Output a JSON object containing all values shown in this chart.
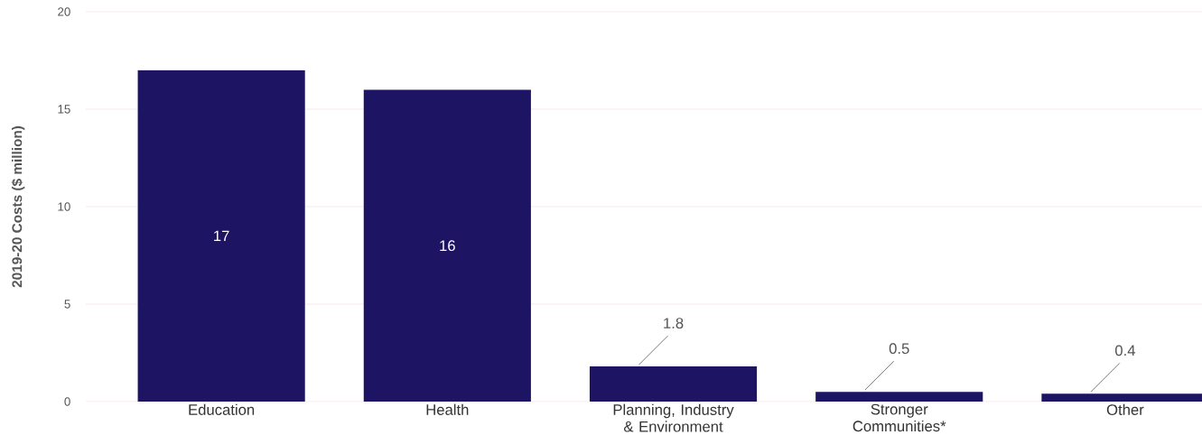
{
  "chart_data": {
    "type": "bar",
    "ylabel": "2019-20 Costs ($ million)",
    "categories": [
      "Education",
      "Health",
      "Planning, Industry & Environment",
      "Stronger Communities*",
      "Other"
    ],
    "values": [
      17,
      16,
      1.8,
      0.5,
      0.4
    ],
    "color": "#1e1464",
    "ylim": [
      0,
      20
    ],
    "yticks": [
      0,
      5,
      10,
      15,
      20
    ],
    "grid": "y",
    "data_labels": true
  }
}
